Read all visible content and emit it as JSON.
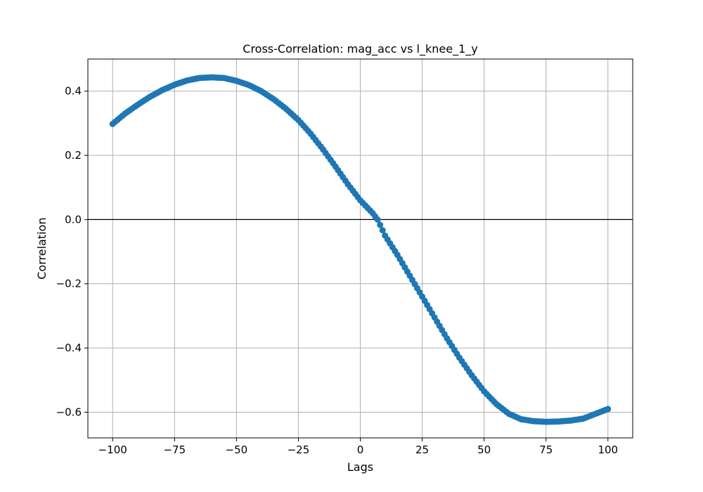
{
  "chart_data": {
    "type": "line",
    "title": "Cross-Correlation: mag_acc vs l_knee_1_y",
    "xlabel": "Lags",
    "ylabel": "Correlation",
    "xlim": [
      -110,
      110
    ],
    "ylim": [
      -0.68,
      0.5
    ],
    "xticks": [
      -100,
      -75,
      -50,
      -25,
      0,
      25,
      50,
      75,
      100
    ],
    "xtick_labels": [
      "−100",
      "−75",
      "−50",
      "−25",
      "0",
      "25",
      "50",
      "75",
      "100"
    ],
    "yticks": [
      -0.6,
      -0.4,
      -0.2,
      0.0,
      0.2,
      0.4
    ],
    "ytick_labels": [
      "−0.6",
      "−0.4",
      "−0.2",
      "0.0",
      "0.2",
      "0.4"
    ],
    "grid": true,
    "zero_line": true,
    "marker": "circle",
    "color": "#1f77b4",
    "x": [
      -100,
      -95,
      -90,
      -85,
      -80,
      -75,
      -70,
      -65,
      -60,
      -55,
      -50,
      -45,
      -40,
      -35,
      -30,
      -25,
      -20,
      -15,
      -10,
      -5,
      0,
      5,
      7,
      10,
      15,
      20,
      25,
      30,
      35,
      40,
      45,
      50,
      55,
      60,
      65,
      70,
      75,
      80,
      85,
      90,
      95,
      100
    ],
    "y": [
      0.298,
      0.33,
      0.357,
      0.382,
      0.403,
      0.42,
      0.433,
      0.441,
      0.443,
      0.441,
      0.432,
      0.419,
      0.4,
      0.375,
      0.345,
      0.31,
      0.267,
      0.218,
      0.165,
      0.11,
      0.06,
      0.02,
      0.0,
      -0.05,
      -0.11,
      -0.175,
      -0.24,
      -0.305,
      -0.37,
      -0.43,
      -0.485,
      -0.535,
      -0.575,
      -0.605,
      -0.622,
      -0.628,
      -0.63,
      -0.629,
      -0.626,
      -0.62,
      -0.605,
      -0.59
    ]
  }
}
